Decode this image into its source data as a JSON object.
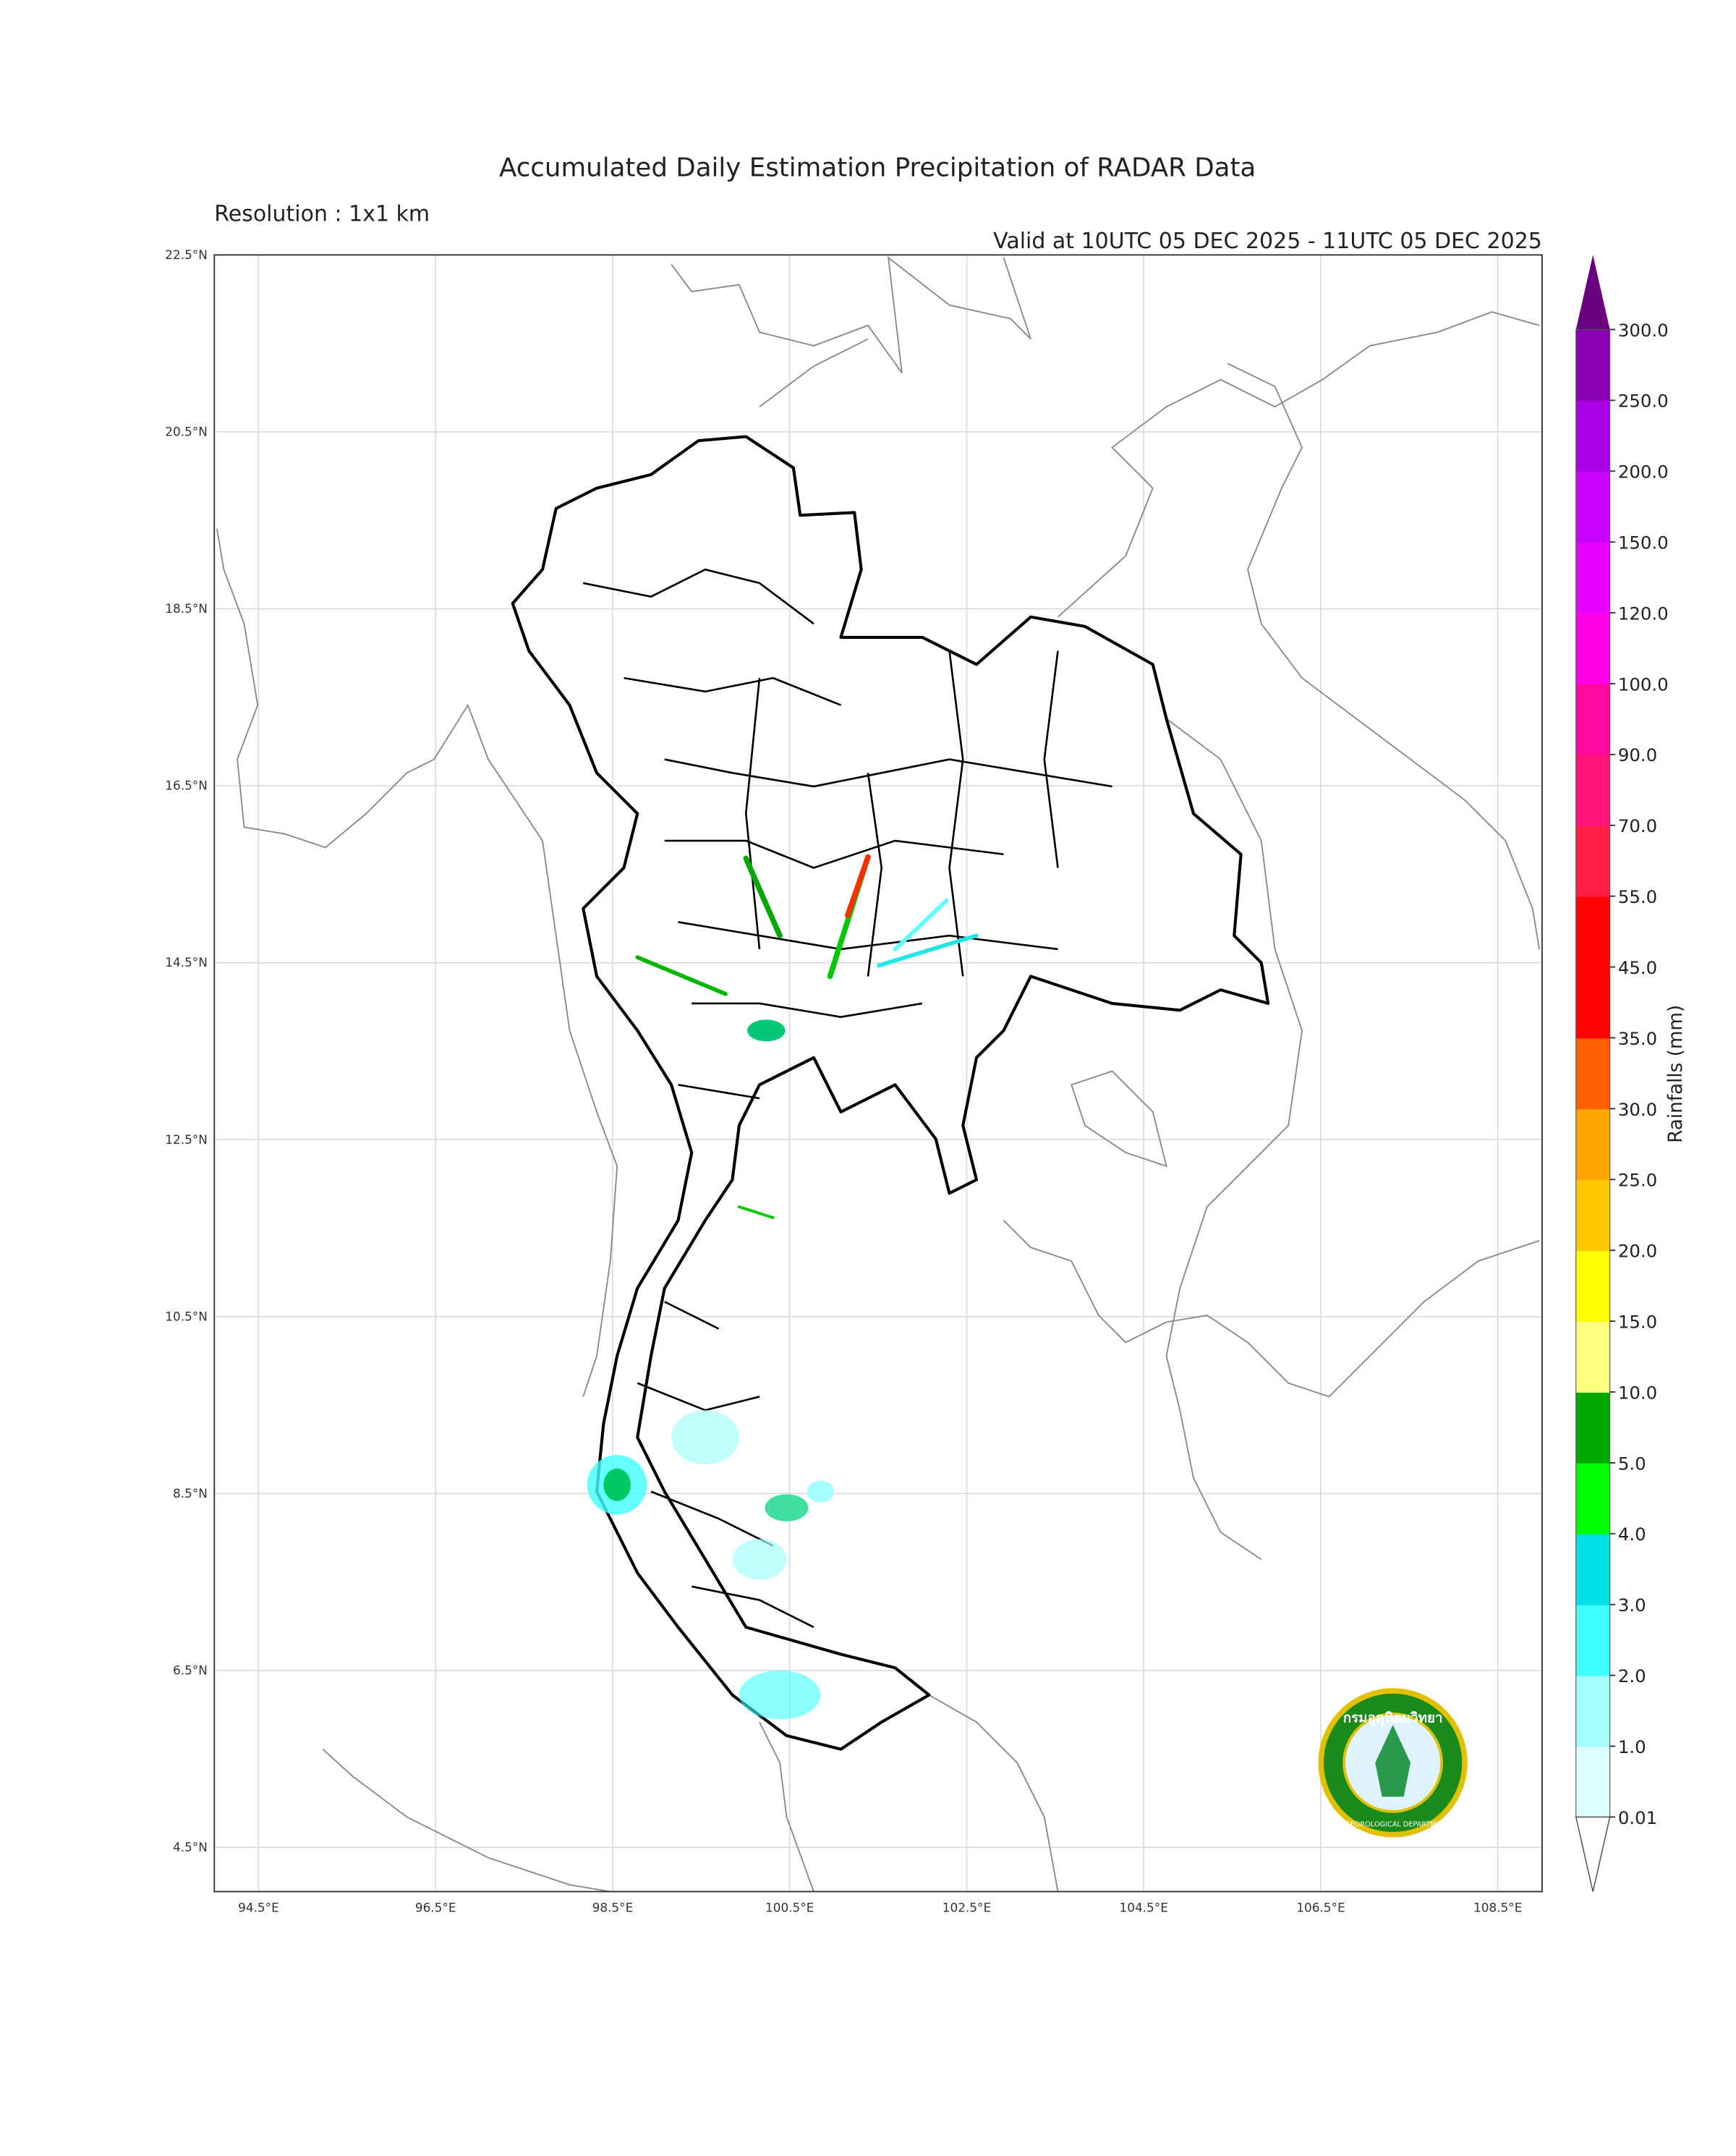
{
  "chart_data": {
    "type": "map",
    "title": "Accumulated Daily Estimation Precipitation of RADAR Data",
    "subtitle": "Resolution : 1x1 km",
    "valid_time": "Valid at 10UTC 05 DEC 2025 - 11UTC 05 DEC 2025",
    "xlim": [
      94,
      109
    ],
    "ylim": [
      4,
      22.5
    ],
    "xticks": [
      {
        "value": 94.5,
        "label": "94.5°E"
      },
      {
        "value": 96.5,
        "label": "96.5°E"
      },
      {
        "value": 98.5,
        "label": "98.5°E"
      },
      {
        "value": 100.5,
        "label": "100.5°E"
      },
      {
        "value": 102.5,
        "label": "102.5°E"
      },
      {
        "value": 104.5,
        "label": "104.5°E"
      },
      {
        "value": 106.5,
        "label": "106.5°E"
      },
      {
        "value": 108.5,
        "label": "108.5°E"
      }
    ],
    "yticks": [
      {
        "value": 4.5,
        "label": "4.5°N"
      },
      {
        "value": 6.5,
        "label": "6.5°N"
      },
      {
        "value": 8.5,
        "label": "8.5°N"
      },
      {
        "value": 10.5,
        "label": "10.5°N"
      },
      {
        "value": 12.5,
        "label": "12.5°N"
      },
      {
        "value": 14.5,
        "label": "14.5°N"
      },
      {
        "value": 16.5,
        "label": "16.5°N"
      },
      {
        "value": 18.5,
        "label": "18.5°N"
      },
      {
        "value": 20.5,
        "label": "20.5°N"
      },
      {
        "value": 22.5,
        "label": "22.5°N"
      }
    ],
    "grid": true,
    "colorbar": {
      "label": "Rainfalls (mm)",
      "levels": [
        0.01,
        {
          "value": 1,
          "label": "1.0"
        },
        {
          "value": 2,
          "label": "2.0"
        },
        {
          "value": 3,
          "label": "3.0"
        },
        {
          "value": 4,
          "label": "4.0"
        },
        {
          "value": 5,
          "label": "5.0"
        },
        {
          "value": 10,
          "label": "10.0"
        },
        {
          "value": 15,
          "label": "15.0"
        },
        {
          "value": 20,
          "label": "20.0"
        },
        {
          "value": 25,
          "label": "25.0"
        },
        {
          "value": 30,
          "label": "30.0"
        },
        {
          "value": 35,
          "label": "35.0"
        },
        {
          "value": 45,
          "label": "45.0"
        },
        {
          "value": 55,
          "label": "55.0"
        },
        {
          "value": 70,
          "label": "70.0"
        },
        {
          "value": 90,
          "label": "90.0"
        },
        {
          "value": 100,
          "label": "100.0"
        },
        {
          "value": 120,
          "label": "120.0"
        },
        {
          "value": 150,
          "label": "150.0"
        },
        {
          "value": 200,
          "label": "200.0"
        },
        {
          "value": 250,
          "label": "250.0"
        },
        {
          "value": 300,
          "label": "300.0"
        }
      ],
      "colors": [
        "#dcffff",
        "#a6ffff",
        "#40ffff",
        "#00e0e6",
        "#00ff00",
        "#00a800",
        "#ffff80",
        "#ffff00",
        "#ffc800",
        "#ffa500",
        "#ff6000",
        "#ff0000",
        "#ff0000",
        "#ff1e46",
        "#ff1478",
        "#ff0a9e",
        "#ff00e6",
        "#e600ff",
        "#c800ff",
        "#aa00e6",
        "#8c00b4"
      ],
      "over_color": "#6a0080",
      "under_color": "#ffffff"
    },
    "logo": {
      "thai": "กรมอุตุนิยมวิทยา",
      "english": "METEOROLOGICAL DEPARTMENT"
    }
  }
}
